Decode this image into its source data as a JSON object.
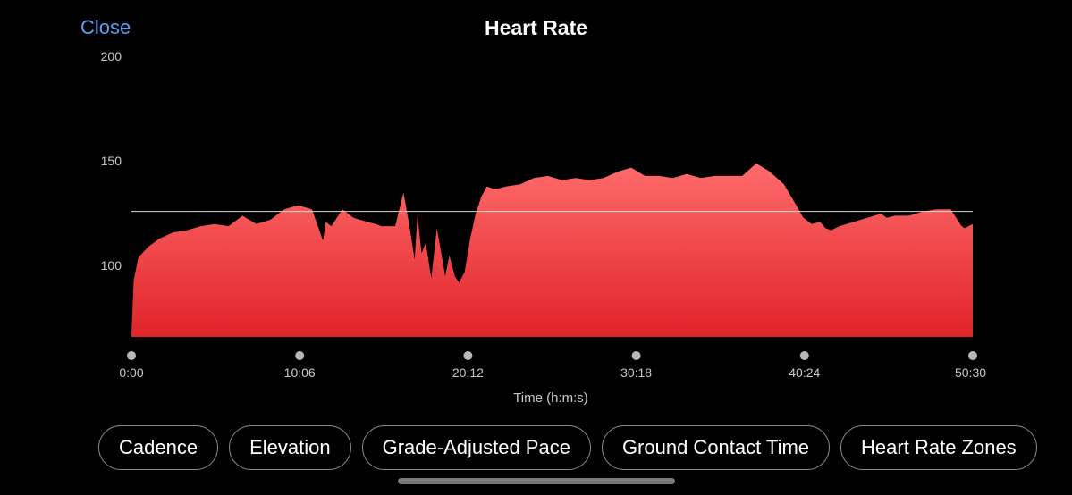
{
  "header": {
    "close_label": "Close",
    "title": "Heart Rate"
  },
  "chart_data": {
    "type": "area",
    "title": "Heart Rate",
    "xlabel": "Time (h:m:s)",
    "ylabel": "",
    "x_ticks": [
      "0:00",
      "10:06",
      "20:12",
      "30:18",
      "40:24",
      "50:30"
    ],
    "x_range_seconds": [
      0,
      3030
    ],
    "y_ticks": [
      100,
      150,
      200
    ],
    "ylim": [
      73,
      200
    ],
    "average_line": 133,
    "fill_colors": [
      "#ff6b6b",
      "#e0242a"
    ],
    "average_line_color": "#d8d8d8",
    "series": [
      {
        "x_seconds": [
          0,
          8,
          25,
          60,
          100,
          150,
          200,
          250,
          300,
          350,
          400,
          450,
          500,
          550,
          600,
          650,
          690,
          700,
          720,
          760,
          800,
          850,
          880,
          900,
          950,
          980,
          1000,
          1020,
          1030,
          1045,
          1060,
          1080,
          1100,
          1120,
          1130,
          1145,
          1165,
          1180,
          1200,
          1220,
          1240,
          1260,
          1280,
          1300,
          1320,
          1350,
          1400,
          1450,
          1500,
          1550,
          1600,
          1650,
          1700,
          1750,
          1800,
          1850,
          1900,
          1950,
          2000,
          2050,
          2100,
          2150,
          2200,
          2250,
          2300,
          2350,
          2390,
          2420,
          2450,
          2480,
          2500,
          2520,
          2550,
          2600,
          2650,
          2700,
          2720,
          2750,
          2800,
          2850,
          2900,
          2950,
          2990,
          3000,
          3030
        ],
        "values": [
          74,
          100,
          111,
          116,
          120,
          123,
          124,
          126,
          127,
          126,
          131,
          127,
          129,
          134,
          136,
          134,
          119,
          128,
          126,
          134,
          130,
          128,
          127,
          126,
          126,
          142,
          127,
          110,
          131,
          113,
          118,
          101,
          125,
          110,
          102,
          112,
          102,
          99,
          104,
          120,
          132,
          140,
          145,
          144,
          144,
          145,
          146,
          149,
          150,
          148,
          149,
          148,
          149,
          152,
          154,
          150,
          150,
          149,
          151,
          149,
          150,
          150,
          150,
          156,
          152,
          146,
          137,
          130,
          127,
          128,
          125,
          124,
          126,
          128,
          130,
          132,
          130,
          131,
          131,
          133,
          134,
          134,
          126,
          125,
          127
        ]
      }
    ]
  },
  "chips": [
    "Cadence",
    "Elevation",
    "Grade-Adjusted Pace",
    "Ground Contact Time",
    "Heart Rate Zones"
  ]
}
